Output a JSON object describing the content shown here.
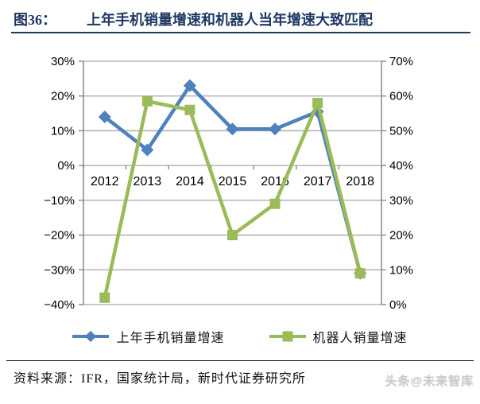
{
  "header": {
    "figure_label": "图36：",
    "title": "上年手机销量增速和机器人当年增速大致匹配"
  },
  "chart_data": {
    "type": "line",
    "categories": [
      "2012",
      "2013",
      "2014",
      "2015",
      "2016",
      "2017",
      "2018"
    ],
    "series": [
      {
        "name": "上年手机销量增速",
        "axis": "left",
        "marker": "diamond",
        "color": "#4F81BD",
        "values": [
          14,
          4.5,
          23,
          10.5,
          10.5,
          15.5,
          -31
        ]
      },
      {
        "name": "机器人销量增速",
        "axis": "right",
        "marker": "square",
        "color": "#9BBB59",
        "values": [
          2,
          58.5,
          56,
          20,
          29,
          58,
          9
        ]
      }
    ],
    "left_axis": {
      "min": -40,
      "max": 30,
      "step": 10,
      "tick_labels": [
        "30%",
        "20%",
        "10%",
        "0%",
        "−10%",
        "−20%",
        "−30%",
        "−40%"
      ]
    },
    "right_axis": {
      "min": 0,
      "max": 70,
      "step": 10,
      "tick_labels": [
        "70%",
        "60%",
        "50%",
        "40%",
        "30%",
        "20%",
        "10%",
        "0%"
      ]
    },
    "grid": true,
    "legend_position": "bottom"
  },
  "footer": {
    "source": "资料来源：IFR，国家统计局，新时代证券研究所",
    "watermark": "头条@未来智库"
  },
  "colors": {
    "title_navy": "#1F3864",
    "phone_blue": "#4F81BD",
    "robot_green": "#9BBB59",
    "gridline_gray": "#A6A6A6",
    "axis_frame_gray": "#808080",
    "tick_text_black": "#000000",
    "watermark_gray": "#C9C9C9"
  }
}
